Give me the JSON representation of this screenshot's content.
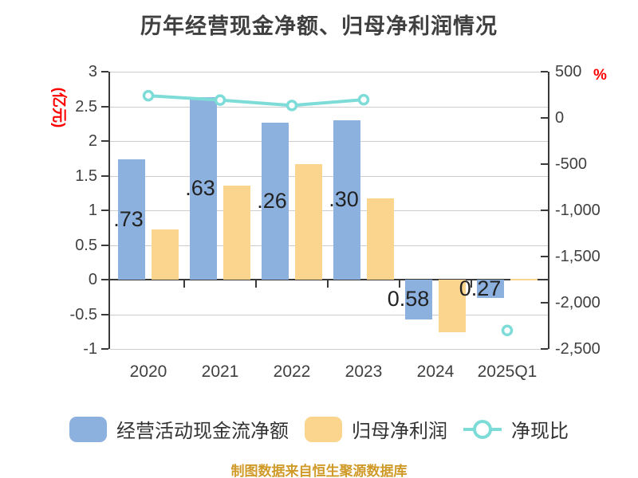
{
  "title": "历年经营现金净额、归母净利润情况",
  "footer": "制图数据来自恒生聚源数据库",
  "legend": [
    {
      "label": "经营活动现金流净额",
      "type": "bar",
      "color": "#8db1de"
    },
    {
      "label": "归母净利润",
      "type": "bar",
      "color": "#fbd58e"
    },
    {
      "label": "净现比",
      "type": "line",
      "color": "#7edcd8"
    }
  ],
  "colors": {
    "bar_blue": "#8db1de",
    "bar_orange": "#fbd58e",
    "line_cyan": "#7edcd8",
    "axis_text": "#404040",
    "data_label": "#222222",
    "grid": "#cdcdcd",
    "axis_line": "#3a3a3a",
    "unit_red": "#ff0000",
    "footer_gold": "#d09a28"
  },
  "chart_data": {
    "type": "bar+line combo, dual y-axis",
    "categories": [
      "2020",
      "2021",
      "2022",
      "2023",
      "2024",
      "2025Q1"
    ],
    "series": [
      {
        "name": "经营活动现金流净额",
        "type": "bar",
        "axis": "left",
        "unit": "亿元",
        "values": [
          1.73,
          2.63,
          2.26,
          2.3,
          -0.58,
          -0.27
        ],
        "labels_visible": [
          ".73",
          ".63",
          ".26",
          ".30",
          "0.58",
          "0.27"
        ]
      },
      {
        "name": "归母净利润",
        "type": "bar",
        "axis": "left",
        "unit": "亿元",
        "values": [
          0.72,
          1.36,
          1.67,
          1.17,
          -0.76,
          0.01
        ]
      },
      {
        "name": "净现比",
        "type": "line",
        "axis": "right",
        "unit": "%",
        "values": [
          240,
          193,
          135,
          197,
          null,
          -2300
        ],
        "line_connects_indices": [
          0,
          1,
          2,
          3
        ],
        "isolated_marker_indices": [
          5
        ]
      }
    ],
    "left_axis": {
      "name": "(亿元)",
      "min": -1,
      "max": 3,
      "tick_labels": [
        "3",
        "2.5",
        "2",
        "1.5",
        "1",
        "0.5",
        "0",
        "-0.5",
        "-1"
      ]
    },
    "right_axis": {
      "name": "%",
      "min": -2500,
      "max": 500,
      "tick_labels": [
        "500",
        "0",
        "-500",
        "-1,000",
        "-1,500",
        "-2,000",
        "-2,500"
      ]
    },
    "grid": "horizontal gridlines from left axis, dark zero line",
    "legend_position": "bottom-center"
  }
}
